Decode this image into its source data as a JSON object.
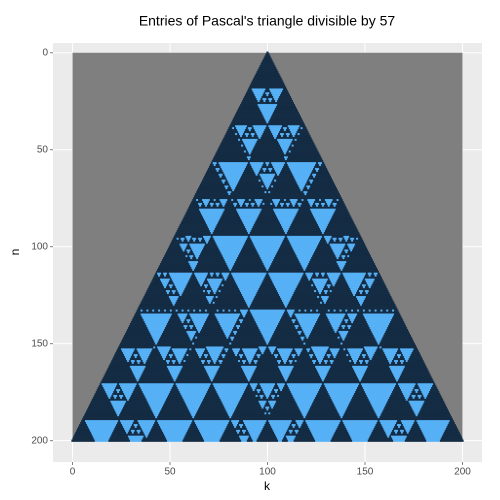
{
  "chart_data": {
    "type": "pascal-mod",
    "title": "Entries of Pascal's triangle divisible by 57",
    "x_label": "k",
    "y_label": "n",
    "divisor": 57,
    "n_range": [
      0,
      200
    ],
    "xlim": [
      -10,
      210
    ],
    "ylim": [
      211,
      -5
    ],
    "xticks": [
      0,
      50,
      100,
      150,
      200
    ],
    "yticks": [
      0,
      50,
      100,
      150,
      200
    ],
    "grid": true,
    "colors": {
      "divisible": "#56b1f7",
      "other": "#132b43",
      "missing": "#7f7f7f"
    }
  }
}
